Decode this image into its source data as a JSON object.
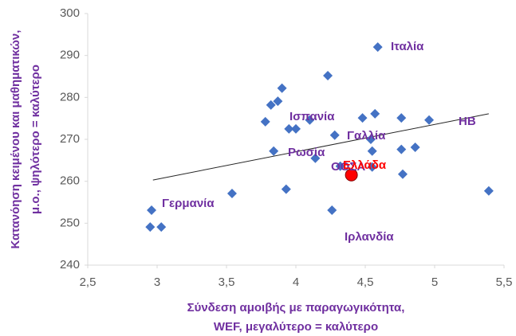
{
  "chart_data": {
    "type": "scatter",
    "x_label": [
      "Σύνδεση αμοιβής με παραγωγικότητα,",
      "WEF, μεγαλύτερο = καλύτερο"
    ],
    "y_label": [
      "Κατανόηση κειμένου και μαθηματικών,",
      "μ.ο., ψηλότερο = καλύτερο"
    ],
    "xlim": [
      2.5,
      5.5
    ],
    "xticks": [
      {
        "value": 2.5,
        "label": "2,5"
      },
      3,
      {
        "value": 3.5,
        "label": "3,5"
      },
      4,
      {
        "value": 4.5,
        "label": "4,5"
      },
      5,
      {
        "value": 5.5,
        "label": "5,5"
      }
    ],
    "ylim": [
      240,
      300
    ],
    "yticks": [
      240,
      250,
      260,
      270,
      280,
      290,
      300
    ],
    "color": "#4472c4",
    "x": [
      4.59,
      4.23,
      3.9,
      3.87,
      3.82,
      3.78,
      4.1,
      3.95,
      4.0,
      4.48,
      4.57,
      4.76,
      4.96,
      4.28,
      4.54,
      4.55,
      3.84,
      4.14,
      4.76,
      4.86,
      4.32,
      4.55,
      4.77,
      3.93,
      3.54,
      5.39,
      4.26,
      2.96,
      2.95,
      3.03
    ],
    "y": [
      292.0,
      285.2,
      282.2,
      279.1,
      278.2,
      274.2,
      274.6,
      272.5,
      272.5,
      275.1,
      276.1,
      275.1,
      274.6,
      271.0,
      270.0,
      267.2,
      267.2,
      265.5,
      267.6,
      268.1,
      263.6,
      263.4,
      261.7,
      258.1,
      257.1,
      257.7,
      253.1,
      253.1,
      249.1,
      249.1
    ],
    "highlight": {
      "x": 4.4,
      "y": 261.5,
      "color": "#ff0000"
    },
    "trendline": {
      "x": [
        2.97,
        5.39
      ],
      "y": [
        260.3,
        276.1
      ]
    },
    "annotations": [
      "Ιταλία",
      "Ισπανία",
      "Γαλλία",
      "Ρωσία",
      "ΟΟΣΑ",
      "Ελλάδα",
      "ΗΒ",
      "Γερμανία",
      "Ιρλανδία"
    ],
    "annotation_colors": [
      "#7030a0",
      "#7030a0",
      "#7030a0",
      "#7030a0",
      "#7030a0",
      "#ff0000",
      "#7030a0",
      "#7030a0",
      "#7030a0"
    ]
  }
}
